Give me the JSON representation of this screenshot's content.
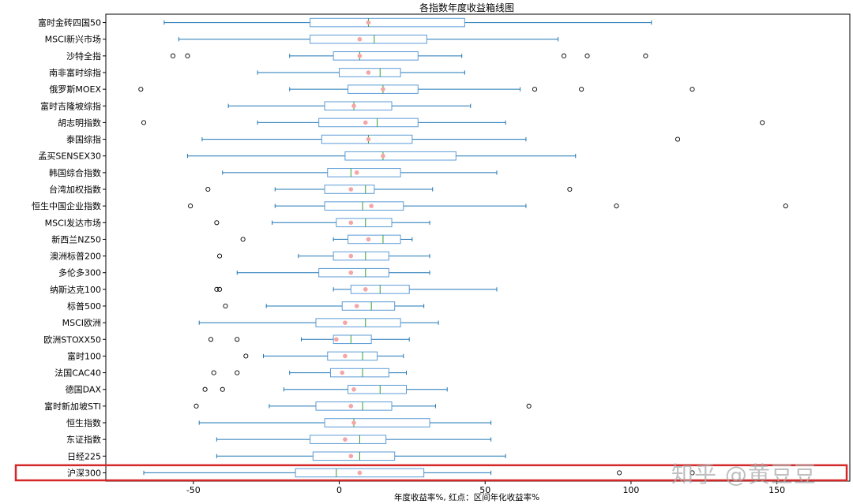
{
  "chart_data": {
    "type": "boxplot",
    "title": "各指数年度收益箱线图",
    "xlabel": "年度收益率%, 红点：区间年化收益率%",
    "ylabel": "",
    "xlim": [
      -80,
      175
    ],
    "xticks": [
      -50,
      0,
      50,
      100,
      150
    ],
    "grid": false,
    "colors": {
      "box": "#5b9bd5",
      "whisker": "#1f77b4",
      "median": "#2ca02c",
      "mean": "#f4a6a6",
      "highlight": "#d62728"
    },
    "highlighted_category": "沪深300",
    "series": [
      {
        "name": "富时金砖四国50",
        "min": -60,
        "q1": -10,
        "median": 10,
        "q3": 43,
        "max": 107,
        "mean": 10,
        "outliers": []
      },
      {
        "name": "MSCI新兴市场",
        "min": -55,
        "q1": -10,
        "median": 12,
        "q3": 30,
        "max": 75,
        "mean": 7,
        "outliers": []
      },
      {
        "name": "沙特全指",
        "min": -17,
        "q1": -2,
        "median": 7,
        "q3": 27,
        "max": 42,
        "mean": 7,
        "outliers": [
          -57,
          -52,
          77,
          85,
          105
        ]
      },
      {
        "name": "南非富时综指",
        "min": -28,
        "q1": 0,
        "median": 14,
        "q3": 21,
        "max": 43,
        "mean": 10,
        "outliers": []
      },
      {
        "name": "俄罗斯MOEX",
        "min": -17,
        "q1": 3,
        "median": 15,
        "q3": 27,
        "max": 62,
        "mean": 15,
        "outliers": [
          -68,
          67,
          83,
          121
        ]
      },
      {
        "name": "富时吉隆坡综指",
        "min": -38,
        "q1": -5,
        "median": 5,
        "q3": 18,
        "max": 45,
        "mean": 5,
        "outliers": []
      },
      {
        "name": "胡志明指数",
        "min": -28,
        "q1": -7,
        "median": 13,
        "q3": 27,
        "max": 57,
        "mean": 9,
        "outliers": [
          -67,
          145
        ]
      },
      {
        "name": "泰国综指",
        "min": -47,
        "q1": -6,
        "median": 10,
        "q3": 25,
        "max": 64,
        "mean": 10,
        "outliers": [
          116
        ]
      },
      {
        "name": "孟买SENSEX30",
        "min": -52,
        "q1": 2,
        "median": 15,
        "q3": 40,
        "max": 81,
        "mean": 15,
        "outliers": []
      },
      {
        "name": "韩国综合指数",
        "min": -40,
        "q1": -4,
        "median": 4,
        "q3": 21,
        "max": 54,
        "mean": 6,
        "outliers": []
      },
      {
        "name": "台湾加权指数",
        "min": -22,
        "q1": -5,
        "median": 9,
        "q3": 12,
        "max": 32,
        "mean": 4,
        "outliers": [
          -45,
          79
        ]
      },
      {
        "name": "恒生中国企业指数",
        "min": -22,
        "q1": -5,
        "median": 8,
        "q3": 22,
        "max": 64,
        "mean": 11,
        "outliers": [
          -51,
          95,
          153
        ]
      },
      {
        "name": "MSCI发达市场",
        "min": -23,
        "q1": -1,
        "median": 9,
        "q3": 18,
        "max": 31,
        "mean": 4,
        "outliers": [
          -42
        ]
      },
      {
        "name": "新西兰NZ50",
        "min": -2,
        "q1": 3,
        "median": 15,
        "q3": 21,
        "max": 25,
        "mean": 10,
        "outliers": [
          -33
        ]
      },
      {
        "name": "澳洲标普200",
        "min": -14,
        "q1": -2,
        "median": 9,
        "q3": 17,
        "max": 31,
        "mean": 4,
        "outliers": [
          -41
        ]
      },
      {
        "name": "多伦多300",
        "min": -35,
        "q1": -7,
        "median": 9,
        "q3": 17,
        "max": 31,
        "mean": 4,
        "outliers": []
      },
      {
        "name": "纳斯达克100",
        "min": -2,
        "q1": 4,
        "median": 14,
        "q3": 24,
        "max": 54,
        "mean": 9,
        "outliers": [
          -42,
          -41
        ]
      },
      {
        "name": "标普500",
        "min": -25,
        "q1": 1,
        "median": 11,
        "q3": 19,
        "max": 29,
        "mean": 6,
        "outliers": [
          -39
        ]
      },
      {
        "name": "MSCI欧洲",
        "min": -48,
        "q1": -8,
        "median": 9,
        "q3": 21,
        "max": 34,
        "mean": 2,
        "outliers": []
      },
      {
        "name": "欧洲STOXX50",
        "min": -13,
        "q1": -2,
        "median": 4,
        "q3": 11,
        "max": 24,
        "mean": -1,
        "outliers": [
          -44,
          -35
        ]
      },
      {
        "name": "富时100",
        "min": -26,
        "q1": -4,
        "median": 8,
        "q3": 13,
        "max": 22,
        "mean": 2,
        "outliers": [
          -32
        ]
      },
      {
        "name": "法国CAC40",
        "min": -17,
        "q1": -3,
        "median": 8,
        "q3": 17,
        "max": 23,
        "mean": 1,
        "outliers": [
          -43,
          -35
        ]
      },
      {
        "name": "德国DAX",
        "min": -19,
        "q1": 3,
        "median": 14,
        "q3": 23,
        "max": 37,
        "mean": 5,
        "outliers": [
          -46,
          -40
        ]
      },
      {
        "name": "富时新加坡STI",
        "min": -24,
        "q1": -8,
        "median": 8,
        "q3": 18,
        "max": 33,
        "mean": 4,
        "outliers": [
          -49,
          65
        ]
      },
      {
        "name": "恒生指数",
        "min": -48,
        "q1": -5,
        "median": 5,
        "q3": 31,
        "max": 52,
        "mean": 5,
        "outliers": []
      },
      {
        "name": "东证指数",
        "min": -42,
        "q1": -10,
        "median": 7,
        "q3": 16,
        "max": 52,
        "mean": 2,
        "outliers": []
      },
      {
        "name": "日经225",
        "min": -42,
        "q1": -9,
        "median": 7,
        "q3": 19,
        "max": 57,
        "mean": 4,
        "outliers": []
      },
      {
        "name": "沪深300",
        "min": -67,
        "q1": -15,
        "median": -1,
        "q3": 29,
        "max": 52,
        "mean": 7,
        "outliers": [
          96,
          121
        ]
      }
    ]
  },
  "watermark_text": "知乎 @黄豆豆"
}
